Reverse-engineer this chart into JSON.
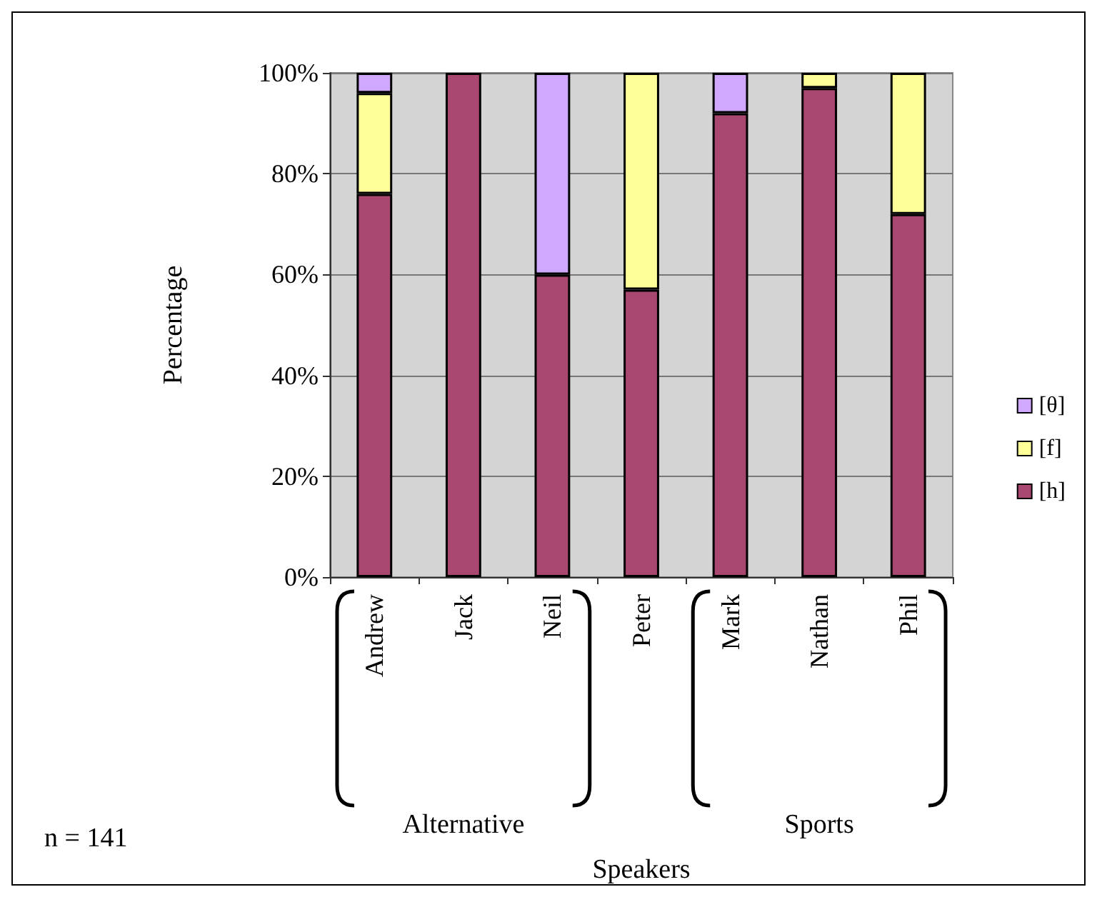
{
  "chart_data": {
    "type": "bar",
    "stacked": true,
    "ylabel": "Percentage",
    "categories": [
      "Andrew",
      "Jack",
      "Neil",
      "Peter",
      "Mark",
      "Nathan",
      "Phil"
    ],
    "series": [
      {
        "name": "[h]",
        "color": "#a8476f",
        "values": [
          76,
          100,
          60,
          57,
          92,
          97,
          72
        ]
      },
      {
        "name": "[f]",
        "color": "#ffff99",
        "values": [
          20,
          null,
          null,
          43,
          null,
          3,
          28
        ]
      },
      {
        "name": "[θ]",
        "color": "#d0a8ff",
        "values": [
          4,
          null,
          40,
          null,
          8,
          null,
          null
        ]
      }
    ],
    "ylim": [
      0,
      100
    ],
    "yticks": [
      {
        "value": 0,
        "label": "0%"
      },
      {
        "value": 20,
        "label": "20%"
      },
      {
        "value": 40,
        "label": "40%"
      },
      {
        "value": 60,
        "label": "60%"
      },
      {
        "value": 80,
        "label": "80%"
      },
      {
        "value": 100,
        "label": "100%"
      }
    ],
    "grid": "y",
    "legend": "right",
    "annotations": [
      "Alternative",
      "Sports",
      "n = 141",
      "Speakers"
    ]
  }
}
